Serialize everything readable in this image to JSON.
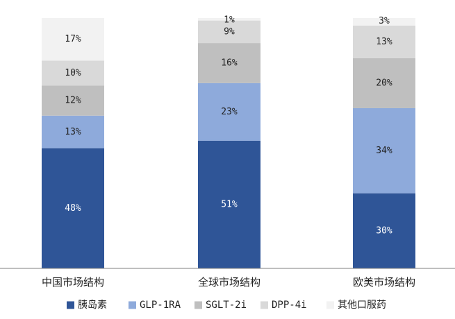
{
  "chart_data": {
    "type": "bar",
    "stacked": true,
    "percent": true,
    "categories": [
      "中国市场结构",
      "全球市场结构",
      "欧美市场结构"
    ],
    "series": [
      {
        "name": "胰岛素",
        "color": "#2f5597",
        "values": [
          48,
          51,
          30
        ],
        "labels": [
          "48%",
          "51%",
          "30%"
        ],
        "label_color": "#ffffff"
      },
      {
        "name": "GLP-1RA",
        "color": "#8eaadb",
        "values": [
          13,
          23,
          34
        ],
        "labels": [
          "13%",
          "23%",
          "34%"
        ],
        "label_color": "#222222"
      },
      {
        "name": "SGLT-2i",
        "color": "#bfbfbf",
        "values": [
          12,
          16,
          20
        ],
        "labels": [
          "12%",
          "16%",
          "20%"
        ],
        "label_color": "#222222"
      },
      {
        "name": "DPP-4i",
        "color": "#d9d9d9",
        "values": [
          10,
          9,
          13
        ],
        "labels": [
          "10%",
          "9%",
          "13%"
        ],
        "label_color": "#222222"
      },
      {
        "name": "其他口服药",
        "color": "#f2f2f2",
        "values": [
          17,
          1,
          3
        ],
        "labels": [
          "17%",
          "1%",
          "3%"
        ],
        "label_color": "#222222"
      }
    ],
    "ylim": [
      0,
      100
    ],
    "grid": false,
    "legend": "bottom",
    "title": "",
    "xlabel": "",
    "ylabel": ""
  }
}
